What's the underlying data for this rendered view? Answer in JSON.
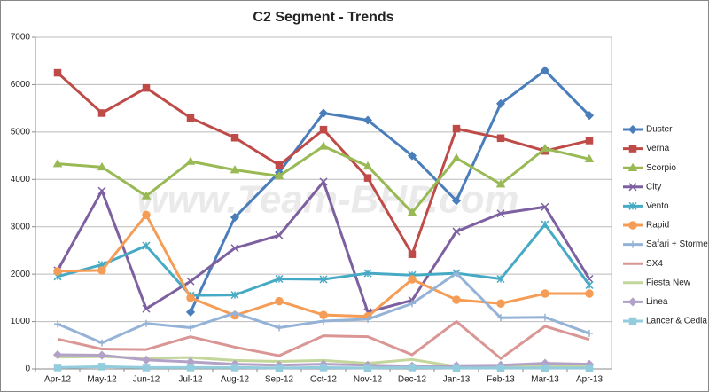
{
  "chart_data": {
    "type": "line",
    "title": "C2 Segment - Trends",
    "watermark": "www.Team-BHP.com",
    "categories": [
      "Apr-12",
      "May-12",
      "Jun-12",
      "Jul-12",
      "Aug-12",
      "Sep-12",
      "Oct-12",
      "Nov-12",
      "Dec-12",
      "Jan-13",
      "Feb-13",
      "Mar-13",
      "Apr-13"
    ],
    "ylim": [
      0,
      7000
    ],
    "yticks": [
      0,
      1000,
      2000,
      3000,
      4000,
      5000,
      6000,
      7000
    ],
    "grid": true,
    "legend": "right",
    "series": [
      {
        "name": "Duster",
        "color": "#4a7ebb",
        "marker": "diamond",
        "values": [
          null,
          null,
          null,
          1200,
          3200,
          4150,
          5400,
          5250,
          4500,
          3550,
          5600,
          6300,
          5350
        ]
      },
      {
        "name": "Verna",
        "color": "#be4b48",
        "marker": "square",
        "values": [
          6250,
          5400,
          5930,
          5300,
          4880,
          4300,
          5050,
          4030,
          2420,
          5070,
          4870,
          4600,
          4820
        ]
      },
      {
        "name": "Scorpio",
        "color": "#98b954",
        "marker": "triangle",
        "values": [
          4330,
          4260,
          3650,
          4380,
          4200,
          4070,
          4700,
          4280,
          3300,
          4450,
          3900,
          4650,
          4430
        ]
      },
      {
        "name": "City",
        "color": "#7d60a0",
        "marker": "x",
        "values": [
          2080,
          3760,
          1270,
          1850,
          2550,
          2820,
          3950,
          1200,
          1450,
          2900,
          3280,
          3420,
          1900
        ]
      },
      {
        "name": "Vento",
        "color": "#46aac5",
        "marker": "star",
        "values": [
          1950,
          2200,
          2600,
          1550,
          1560,
          1900,
          1890,
          2020,
          1980,
          2020,
          1900,
          3050,
          1770
        ]
      },
      {
        "name": "Rapid",
        "color": "#f59d56",
        "marker": "circle",
        "values": [
          2060,
          2080,
          3250,
          1500,
          1130,
          1430,
          1140,
          1110,
          1890,
          1460,
          1380,
          1590,
          1590
        ]
      },
      {
        "name": "Safari + Storme",
        "color": "#95b3d7",
        "marker": "plus",
        "values": [
          950,
          550,
          960,
          870,
          1180,
          870,
          1010,
          1050,
          1380,
          2020,
          1080,
          1090,
          750
        ]
      },
      {
        "name": "SX4",
        "color": "#d99694",
        "marker": "none",
        "values": [
          630,
          420,
          410,
          680,
          460,
          280,
          700,
          680,
          300,
          1000,
          220,
          900,
          620
        ]
      },
      {
        "name": "Fiesta New",
        "color": "#c3d69b",
        "marker": "none",
        "values": [
          250,
          260,
          230,
          240,
          180,
          160,
          180,
          120,
          200,
          50,
          40,
          60,
          50
        ]
      },
      {
        "name": "Linea",
        "color": "#b3a2c7",
        "marker": "diamond",
        "values": [
          300,
          290,
          190,
          150,
          100,
          80,
          100,
          80,
          60,
          70,
          80,
          120,
          100
        ]
      },
      {
        "name": "Lancer & Cedia",
        "color": "#93cddd",
        "marker": "square",
        "values": [
          30,
          50,
          30,
          30,
          30,
          20,
          30,
          20,
          30,
          20,
          20,
          20,
          20
        ]
      }
    ]
  }
}
